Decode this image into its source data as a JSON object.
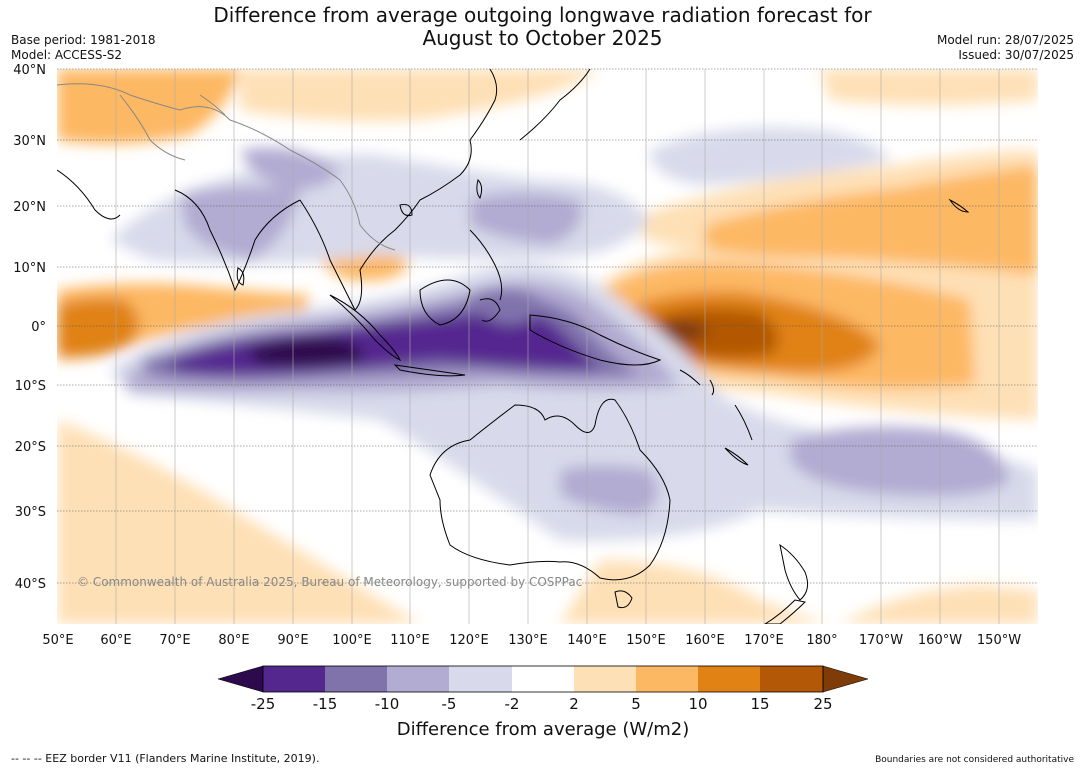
{
  "header": {
    "title_line1": "Difference from average outgoing longwave radiation forecast for",
    "title_line2": "August to October 2025",
    "base_period": "Base period: 1981-2018",
    "model": "Model: ACCESS-S2",
    "model_run": "Model run: 28/07/2025",
    "issued": "Issued: 30/07/2025"
  },
  "map": {
    "lat_labels": [
      "40°N",
      "30°N",
      "20°N",
      "10°N",
      "0°",
      "10°S",
      "20°S",
      "30°S",
      "40°S"
    ],
    "lon_labels": [
      "50°E",
      "60°E",
      "70°E",
      "80°E",
      "90°E",
      "100°E",
      "110°E",
      "120°E",
      "130°E",
      "140°E",
      "150°E",
      "160°E",
      "170°E",
      "180°",
      "170°W",
      "160°W",
      "150°W"
    ],
    "copyright": "© Commonwealth of Australia 2025, Bureau of Meteorology, supported by COSPPac"
  },
  "colorbar": {
    "title": "Difference from average (W/m2)",
    "tick_labels": [
      "-25",
      "-15",
      "-10",
      "-5",
      "-2",
      "2",
      "5",
      "10",
      "15",
      "25"
    ],
    "colors": [
      "#2d0a4b",
      "#54278f",
      "#8073ac",
      "#b2abd2",
      "#d8daeb",
      "#ffffff",
      "#fee0b6",
      "#fdb863",
      "#e08214",
      "#b35806",
      "#7f3b08"
    ]
  },
  "footer": {
    "eez_note": "--  --  -- EEZ border V11 (Flanders Marine Institute, 2019).",
    "boundaries_note": "Boundaries are not considered authoritative"
  }
}
